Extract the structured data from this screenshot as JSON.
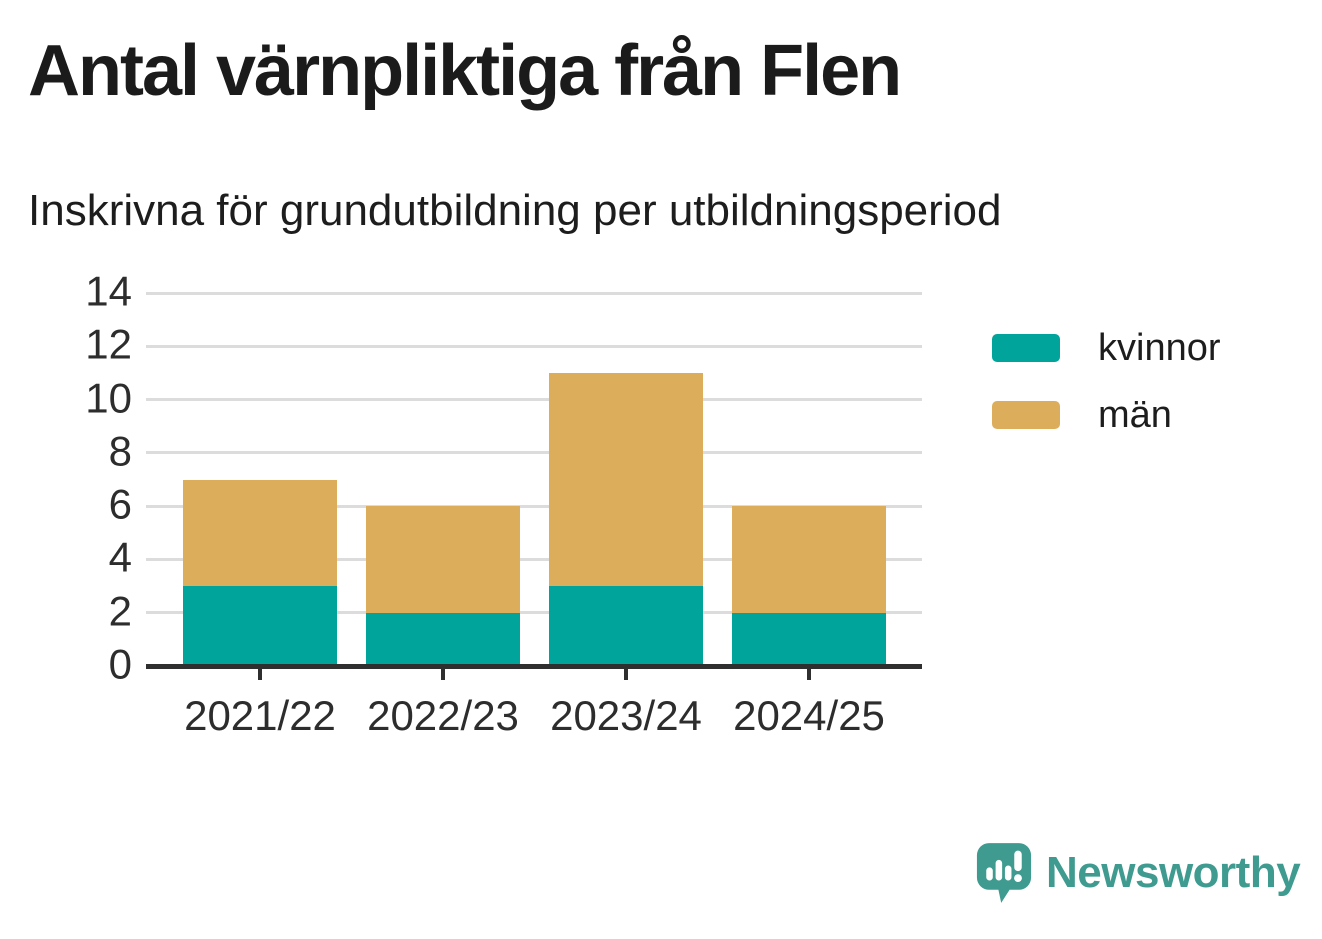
{
  "chart_data": {
    "type": "bar",
    "stacked": true,
    "title": "Antal värnpliktiga från Flen",
    "subtitle": "Inskrivna för grundutbildning per utbildningsperiod",
    "categories": [
      "2021/22",
      "2022/23",
      "2023/24",
      "2024/25"
    ],
    "series": [
      {
        "name": "kvinnor",
        "color": "#00a49b",
        "values": [
          3,
          2,
          3,
          2
        ]
      },
      {
        "name": "män",
        "color": "#dcae5b",
        "values": [
          4,
          4,
          8,
          4
        ]
      }
    ],
    "stack_totals": [
      7,
      6,
      11,
      6
    ],
    "xlabel": "",
    "ylabel": "",
    "ylim": [
      0,
      14
    ],
    "y_ticks": [
      0,
      2,
      4,
      6,
      8,
      10,
      12,
      14
    ],
    "grid": true,
    "legend_position": "right"
  },
  "branding": {
    "name": "Newsworthy",
    "color": "#3f9b90"
  },
  "colors": {
    "background": "#ffffff",
    "grid": "#dcdcdc",
    "axis": "#2f2f2f",
    "text": "#1d1d1d"
  }
}
